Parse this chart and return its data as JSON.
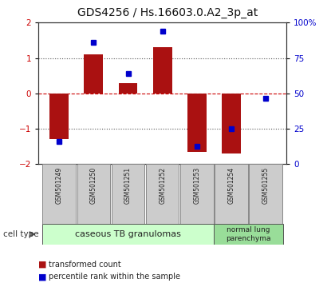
{
  "title": "GDS4256 / Hs.16603.0.A2_3p_at",
  "samples": [
    "GSM501249",
    "GSM501250",
    "GSM501251",
    "GSM501252",
    "GSM501253",
    "GSM501254",
    "GSM501255"
  ],
  "bar_values": [
    -1.3,
    1.1,
    0.3,
    1.3,
    -1.65,
    -1.7,
    0.0
  ],
  "dot_values": [
    -1.35,
    1.45,
    0.55,
    1.75,
    -1.5,
    -1.0,
    -0.15
  ],
  "ylim": [
    -2,
    2
  ],
  "y_ticks": [
    -2,
    -1,
    0,
    1,
    2
  ],
  "y2_ticks": [
    0,
    25,
    50,
    75,
    100
  ],
  "y2_tick_labels": [
    "0",
    "25",
    "50",
    "75",
    "100%"
  ],
  "bar_color": "#aa1111",
  "dot_color": "#0000cc",
  "hline_red_color": "#cc0000",
  "dotted_color": "#555555",
  "group1_label": "caseous TB granulomas",
  "group2_label": "normal lung\nparenchyma",
  "cell_type_label": "cell type",
  "legend_bar_label": "transformed count",
  "legend_dot_label": "percentile rank within the sample",
  "bg_color": "#ffffff",
  "plot_bg": "#ffffff",
  "group1_color": "#ccffcc",
  "group2_color": "#99dd99",
  "sample_box_color": "#cccccc",
  "sample_box_edge": "#888888",
  "tick_color_left": "#cc0000",
  "tick_color_right": "#0000cc",
  "title_fontsize": 10,
  "bar_width": 0.55
}
